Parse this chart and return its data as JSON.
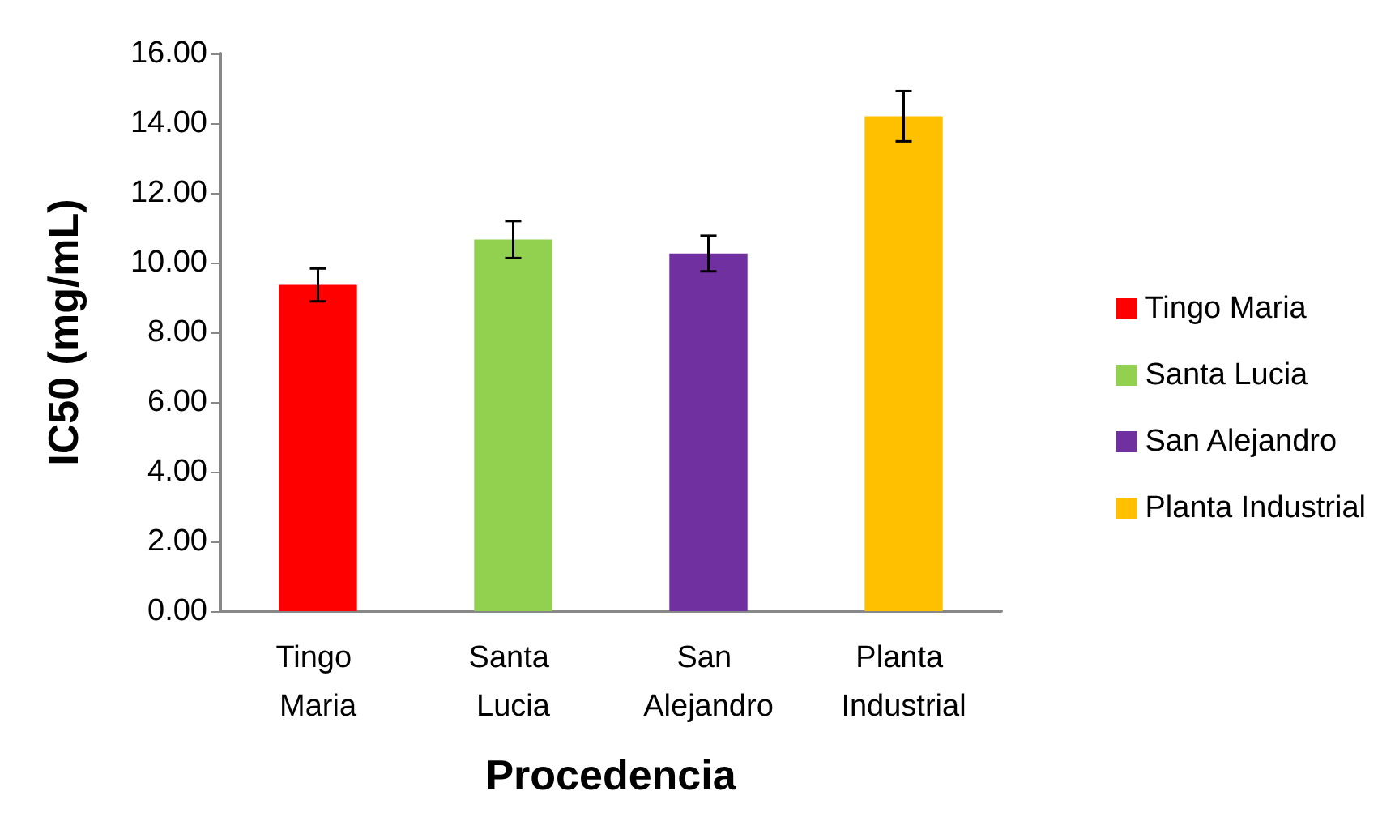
{
  "chart_data": {
    "type": "bar",
    "xlabel": "Procedencia",
    "ylabel": "IC50 (mg/mL)",
    "categories": [
      "Tingo Maria",
      "Santa Lucia",
      "San Alejandro",
      "Planta Industrial"
    ],
    "series": [
      {
        "name": "Tingo Maria",
        "color": "#ff0000",
        "values": [
          9.36,
          null,
          null,
          null
        ],
        "errors": [
          0.47,
          null,
          null,
          null
        ]
      },
      {
        "name": "Santa Lucia",
        "color": "#92d050",
        "values": [
          null,
          10.66,
          null,
          null
        ],
        "errors": [
          null,
          0.53,
          null,
          null
        ]
      },
      {
        "name": "San Alejandro",
        "color": "#7030a0",
        "values": [
          null,
          null,
          10.26,
          null
        ],
        "errors": [
          null,
          null,
          0.51,
          null
        ]
      },
      {
        "name": "Planta Industrial",
        "color": "#ffc000",
        "values": [
          null,
          null,
          null,
          14.2
        ],
        "errors": [
          null,
          null,
          null,
          0.72
        ]
      }
    ],
    "stacked": true,
    "ylim": [
      0,
      16
    ],
    "yticks": [
      {
        "value": 0,
        "label": "0.00"
      },
      {
        "value": 2,
        "label": "2.00"
      },
      {
        "value": 4,
        "label": "4.00"
      },
      {
        "value": 6,
        "label": "6.00"
      },
      {
        "value": 8,
        "label": "8.00"
      },
      {
        "value": 10,
        "label": "10.00"
      },
      {
        "value": 12,
        "label": "12.00"
      },
      {
        "value": 14,
        "label": "14.00"
      },
      {
        "value": 16,
        "label": "16.00"
      }
    ],
    "grid": false,
    "legend": "right"
  }
}
